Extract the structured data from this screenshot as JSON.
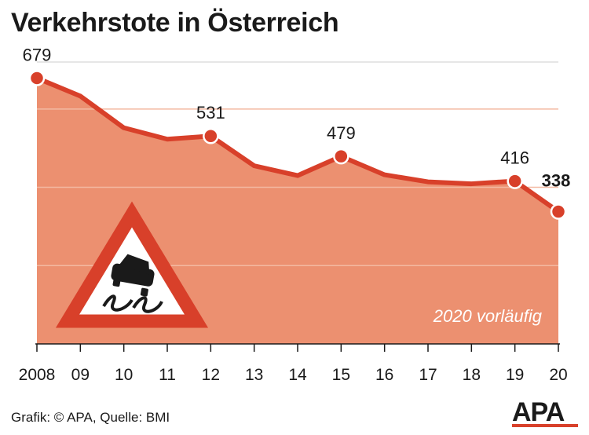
{
  "chart_data": {
    "type": "area",
    "title": "Verkehrstote in Österreich",
    "categories": [
      "2008",
      "09",
      "10",
      "11",
      "12",
      "13",
      "14",
      "15",
      "16",
      "17",
      "18",
      "19",
      "20"
    ],
    "values": [
      679,
      633,
      552,
      523,
      531,
      455,
      430,
      479,
      432,
      414,
      409,
      416,
      338
    ],
    "labeled_points": [
      {
        "index": 0,
        "text": "679"
      },
      {
        "index": 4,
        "text": "531"
      },
      {
        "index": 7,
        "text": "479"
      },
      {
        "index": 11,
        "text": "416"
      },
      {
        "index": 12,
        "text": "338",
        "bold": true
      }
    ],
    "ylim": [
      0,
      720
    ],
    "gridlines": [
      200,
      400,
      600
    ],
    "grid": true,
    "note": "2020 vorläufig",
    "fill_color": "#ec9070",
    "line_color": "#d8402a",
    "grid_color": "#f3b9a2",
    "warning_icon": "skidding-car-warning-icon"
  },
  "source": "Grafik: © APA, Quelle: BMI",
  "logo": {
    "text": "APA",
    "color": "#d8402a"
  }
}
